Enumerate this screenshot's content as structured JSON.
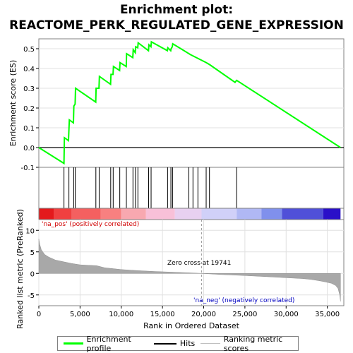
{
  "title_line1": "Enrichment plot:",
  "title_line2": "REACTOME_PERK_REGULATED_GENE_EXPRESSION",
  "legend": {
    "items": [
      {
        "label": "Enrichment profile",
        "color": "#00ff00"
      },
      {
        "label": "Hits",
        "color": "#000000"
      },
      {
        "label": "Ranking metric scores",
        "color": "#c0c0c0"
      }
    ]
  },
  "chart_data": [
    {
      "type": "line",
      "panel": "enrichment",
      "ylabel": "Enrichment score (ES)",
      "xlim": [
        0,
        37000
      ],
      "ylim": [
        -0.1,
        0.55
      ],
      "yticks": [
        -0.1,
        0.0,
        0.1,
        0.2,
        0.3,
        0.4,
        0.5
      ],
      "ytick_labels": [
        "-0.1",
        "0.0",
        "0.1",
        "0.2",
        "0.3",
        "0.4",
        "0.5"
      ],
      "grid": true,
      "color": "#00ff00",
      "series": [
        {
          "x": [
            0,
            3050,
            3100,
            3600,
            3700,
            4200,
            4250,
            4400,
            4450,
            6900,
            6950,
            7300,
            7350,
            8700,
            8750,
            9000,
            9050,
            9800,
            9850,
            10600,
            10650,
            11400,
            11450,
            11700,
            11750,
            12000,
            12050,
            13300,
            13350,
            13600,
            13650,
            15600,
            15650,
            16000,
            16050,
            16200,
            16250,
            18400,
            20300,
            20700,
            23800,
            24000,
            36600
          ],
          "y": [
            0.0,
            -0.08,
            0.05,
            0.035,
            0.14,
            0.125,
            0.21,
            0.22,
            0.3,
            0.23,
            0.3,
            0.3,
            0.36,
            0.32,
            0.37,
            0.37,
            0.41,
            0.39,
            0.43,
            0.41,
            0.475,
            0.455,
            0.495,
            0.48,
            0.51,
            0.505,
            0.53,
            0.49,
            0.52,
            0.51,
            0.535,
            0.49,
            0.505,
            0.49,
            0.5,
            0.51,
            0.525,
            0.47,
            0.43,
            0.42,
            0.33,
            0.34,
            0.0
          ]
        }
      ]
    },
    {
      "type": "hits",
      "panel": "hits",
      "x": [
        3050,
        3650,
        4230,
        4420,
        6920,
        7320,
        8720,
        9020,
        9820,
        10620,
        11420,
        11720,
        12020,
        13320,
        13620,
        15620,
        16020,
        16220,
        18200,
        18700,
        19300,
        20300,
        20700,
        24000
      ],
      "color": "#000000"
    },
    {
      "type": "heatmap",
      "panel": "color-bar",
      "x_breaks": [
        0,
        1800,
        4000,
        7500,
        10000,
        13000,
        16500,
        19741,
        24000,
        27000,
        29500,
        34500,
        36600
      ],
      "colors": [
        "#e41a1c",
        "#f04040",
        "#f46060",
        "#f88080",
        "#f8a8b0",
        "#f8c0d8",
        "#e8d0f0",
        "#d0d0f8",
        "#b0b8f4",
        "#8090ec",
        "#5050d8",
        "#2a10c8"
      ]
    },
    {
      "type": "area",
      "panel": "ranking",
      "ylabel": "Ranked list metric (PreRanked)",
      "xlabel": "Rank in Ordered Dataset",
      "xlim": [
        0,
        37000
      ],
      "ylim": [
        -7.5,
        12.5
      ],
      "xticks": [
        0,
        5000,
        10000,
        15000,
        20000,
        25000,
        30000,
        35000
      ],
      "xtick_labels": [
        "0",
        "5,000",
        "10,000",
        "15,000",
        "20,000",
        "25,000",
        "30,000",
        "35,000"
      ],
      "yticks": [
        -5,
        0,
        5,
        10
      ],
      "ytick_labels": [
        "-5",
        "0",
        "5",
        "10"
      ],
      "grid": true,
      "color": "#c0c0c0",
      "x": [
        0,
        100,
        300,
        700,
        1200,
        2000,
        3000,
        4000,
        5000,
        6000,
        7000,
        8000,
        9000,
        10000,
        12000,
        14000,
        16000,
        18000,
        19741,
        22000,
        25000,
        28000,
        30000,
        32000,
        33000,
        34000,
        34800,
        35500,
        36000,
        36300,
        36500,
        36600
      ],
      "values": [
        8.0,
        6.8,
        5.5,
        4.4,
        3.8,
        3.1,
        2.7,
        2.3,
        2.0,
        1.9,
        1.8,
        1.3,
        1.1,
        0.9,
        0.65,
        0.45,
        0.3,
        0.15,
        0.0,
        -0.25,
        -0.5,
        -0.8,
        -1.0,
        -1.2,
        -1.4,
        -1.7,
        -2.0,
        -2.3,
        -2.8,
        -3.5,
        -5.0,
        -6.5
      ],
      "annotations": {
        "zero_cross": "Zero cross at 19741",
        "zero_cross_x": 19741,
        "pos_label": "'na_pos' (positively correlated)",
        "pos_color": "#d00000",
        "neg_label": "'na_neg' (negatively correlated)",
        "neg_color": "#0000c0"
      }
    }
  ]
}
